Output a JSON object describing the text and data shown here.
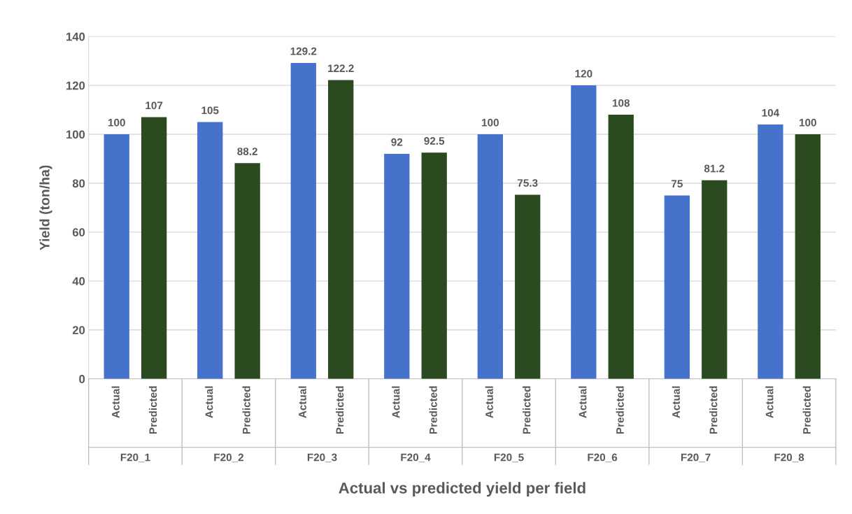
{
  "chart_data": {
    "type": "bar",
    "xlabel": "Actual vs predicted yield per field",
    "ylabel": "Yield (ton/ha)",
    "categories": [
      "F20_1",
      "F20_2",
      "F20_3",
      "F20_4",
      "F20_5",
      "F20_6",
      "F20_7",
      "F20_8"
    ],
    "series": [
      {
        "name": "Actual",
        "color": "#4672cc",
        "values": [
          100,
          105,
          129.2,
          92,
          100,
          120,
          75,
          104
        ]
      },
      {
        "name": "Predicted",
        "color": "#2b4a1f",
        "values": [
          107,
          88.2,
          122.2,
          92.5,
          75.3,
          108,
          81.2,
          100
        ]
      }
    ],
    "ylim": [
      0,
      140
    ],
    "yticks": [
      0,
      20,
      40,
      60,
      80,
      100,
      120,
      140
    ],
    "grid": "y",
    "data_labels": true,
    "legend": false
  }
}
